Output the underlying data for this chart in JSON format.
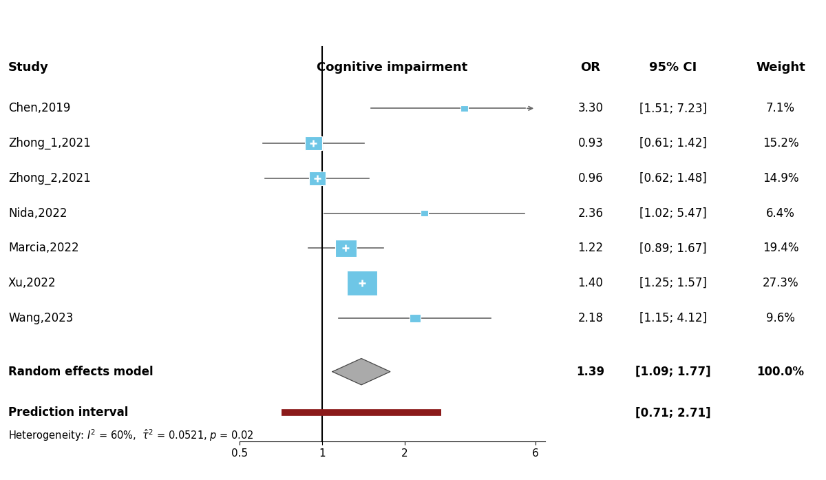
{
  "studies": [
    "Chen,2019",
    "Zhong_1,2021",
    "Zhong_2,2021",
    "Nida,2022",
    "Marcia,2022",
    "Xu,2022",
    "Wang,2023"
  ],
  "or": [
    3.3,
    0.93,
    0.96,
    2.36,
    1.22,
    1.4,
    2.18
  ],
  "ci_low": [
    1.51,
    0.61,
    0.62,
    1.02,
    0.89,
    1.25,
    1.15
  ],
  "ci_high": [
    7.23,
    1.42,
    1.48,
    5.47,
    1.67,
    1.57,
    4.12
  ],
  "weights": [
    7.1,
    15.2,
    14.9,
    6.4,
    19.4,
    27.3,
    9.6
  ],
  "or_labels": [
    "3.30",
    "0.93",
    "0.96",
    "2.36",
    "1.22",
    "1.40",
    "2.18"
  ],
  "ci_labels": [
    "[1.51; 7.23]",
    "[0.61; 1.42]",
    "[0.62; 1.48]",
    "[1.02; 5.47]",
    "[0.89; 1.67]",
    "[1.25; 1.57]",
    "[1.15; 4.12]"
  ],
  "weight_labels": [
    "7.1%",
    "15.2%",
    "14.9%",
    "6.4%",
    "19.4%",
    "27.3%",
    "9.6%"
  ],
  "clipped_high": [
    true,
    false,
    false,
    false,
    false,
    false,
    false
  ],
  "summary_or": 1.39,
  "summary_ci_low": 1.09,
  "summary_ci_high": 1.77,
  "summary_or_label": "1.39",
  "summary_ci_label": "[1.09; 1.77]",
  "summary_weight_label": "100.0%",
  "pred_low": 0.71,
  "pred_high": 2.71,
  "pred_label": "[0.71; 2.71]",
  "xmin": 0.5,
  "xmax": 6.5,
  "xtick_vals": [
    0.5,
    1,
    2,
    6
  ],
  "xtick_labels": [
    "0.5",
    "1",
    "2",
    "6"
  ],
  "null_line": 1.0,
  "box_color": "#6EC6E6",
  "summary_fill": "#AAAAAA",
  "summary_edge": "#444444",
  "pred_color": "#8B1A1A",
  "line_color": "#666666",
  "n_studies": 7
}
